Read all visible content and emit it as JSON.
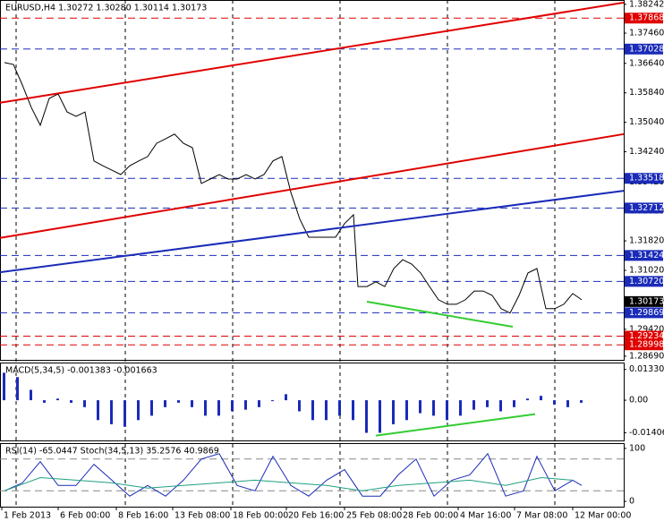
{
  "chart_data": [
    {
      "type": "line",
      "title": "EURUSD,H4  1.30272 1.30280 1.30114 1.30173",
      "color": "#000000",
      "xlim": [
        0,
        139.4
      ],
      "ylim": [
        1.2859,
        1.3836
      ],
      "x": [
        1,
        3,
        5,
        7,
        9,
        11,
        13,
        15,
        17,
        19,
        21,
        23,
        25,
        27,
        29,
        31,
        33,
        35,
        37,
        39,
        41,
        43,
        45,
        47,
        49,
        51,
        53,
        55,
        57,
        59,
        61,
        63,
        65,
        67,
        69,
        71,
        73,
        75,
        77,
        79,
        80,
        82,
        84,
        86,
        88,
        90,
        92,
        94,
        96,
        98,
        100,
        102,
        104,
        106,
        108,
        110,
        112,
        114,
        116,
        118,
        120,
        122,
        124,
        126,
        128,
        130
      ],
      "values": [
        1.3666,
        1.3661,
        1.3605,
        1.3544,
        1.3496,
        1.3569,
        1.3581,
        1.3532,
        1.352,
        1.3532,
        1.3399,
        1.3386,
        1.3374,
        1.3362,
        1.3386,
        1.3399,
        1.3411,
        1.3447,
        1.3459,
        1.3472,
        1.3447,
        1.3435,
        1.3338,
        1.335,
        1.3362,
        1.335,
        1.335,
        1.3362,
        1.335,
        1.3362,
        1.3399,
        1.3411,
        1.3314,
        1.3241,
        1.3192,
        1.3192,
        1.3192,
        1.3192,
        1.3229,
        1.3253,
        1.3058,
        1.3058,
        1.3071,
        1.3058,
        1.3107,
        1.3131,
        1.3119,
        1.3095,
        1.3058,
        1.3022,
        1.301,
        1.301,
        1.3022,
        1.3046,
        1.3046,
        1.3034,
        1.2998,
        1.2986,
        1.3034,
        1.3095,
        1.3107,
        1.2998,
        1.2998,
        1.301,
        1.3039,
        1.3022
      ],
      "yticks": [
        1.38242,
        {
          "value": 1.3746,
          "label": "1.37460"
        },
        {
          "value": 1.3664,
          "label": "1.36640"
        },
        {
          "value": 1.3584,
          "label": "1.35840"
        },
        {
          "value": 1.3504,
          "label": "1.35040"
        },
        {
          "value": 1.3424,
          "label": "1.34240"
        },
        {
          "value": 1.3342,
          "label": "1.33420"
        },
        {
          "value": 1.3262,
          "label": "1.32620"
        },
        {
          "value": 1.3182,
          "label": "1.31820"
        },
        {
          "value": 1.3102,
          "label": "1.31020"
        },
        {
          "value": 1.302,
          "label": "1.30200"
        },
        {
          "value": 1.2942,
          "label": "1.29420"
        },
        {
          "value": 1.2869,
          "label": "1.28690"
        }
      ],
      "levels": [
        {
          "value": 1.37868,
          "color": "#e00000"
        },
        {
          "value": 1.37028,
          "color": "#1a2bb8"
        },
        {
          "value": 1.33518,
          "color": "#1a2bb8"
        },
        {
          "value": 1.32712,
          "color": "#1a2bb8"
        },
        {
          "value": 1.31424,
          "color": "#1a2bb8"
        },
        {
          "value": 1.3072,
          "label": "1.30720",
          "color": "#1a2bb8"
        },
        {
          "value": 1.29869,
          "color": "#1a2bb8"
        },
        {
          "value": 1.29234,
          "color": "#e00000"
        },
        {
          "value": 1.28998,
          "color": "#e00000"
        }
      ],
      "last": 1.30173,
      "trendlines": [
        {
          "color": "#e00000",
          "x": [
            0,
            139.4
          ],
          "values": [
            1.3557,
            1.3829
          ]
        },
        {
          "color": "#e00000",
          "x": [
            0,
            139.4
          ],
          "values": [
            1.319,
            1.3472
          ]
        },
        {
          "color": "#1a2bb8",
          "x": [
            0,
            139.4
          ],
          "values": [
            1.3097,
            1.3318
          ]
        },
        {
          "color": "#33cc33",
          "x": [
            82,
            114.6
          ],
          "values": [
            1.3017,
            1.2949
          ]
        }
      ]
    },
    {
      "type": "bar",
      "title": "MACD(5,34,5) -0.001383 -0.001663",
      "color": "#1a2bb8",
      "xlim": [
        0,
        139.4
      ],
      "ylim": [
        -0.0174,
        0.0163
      ],
      "x": [
        1,
        4,
        7,
        10,
        13,
        16,
        19,
        22,
        25,
        28,
        31,
        34,
        37,
        40,
        43,
        46,
        49,
        52,
        55,
        58,
        61,
        64,
        67,
        70,
        73,
        76,
        79,
        82,
        85,
        88,
        91,
        94,
        97,
        100,
        103,
        106,
        109,
        112,
        115,
        118,
        121,
        124,
        127,
        130
      ],
      "values": [
        0.0119,
        0.01,
        0.0045,
        -0.0011,
        0.0007,
        -0.0011,
        -0.003,
        -0.0086,
        -0.0104,
        -0.0115,
        -0.0086,
        -0.0067,
        -0.003,
        -0.0011,
        -0.003,
        -0.0067,
        -0.0067,
        -0.0048,
        -0.0041,
        -0.003,
        -0.0004,
        0.0026,
        -0.0048,
        -0.0086,
        -0.0086,
        -0.0067,
        -0.0086,
        -0.0141,
        -0.0141,
        -0.0104,
        -0.0086,
        -0.0056,
        -0.0067,
        -0.0086,
        -0.0067,
        -0.0041,
        -0.003,
        -0.0048,
        -0.003,
        0.0007,
        0.0019,
        -0.0019,
        -0.003,
        -0.0011
      ],
      "yticks": [
        0.013308,
        {
          "value": 0,
          "label": "0.00"
        },
        -0.014063
      ],
      "trendlines": [
        {
          "color": "#33cc33",
          "x": [
            84,
            119.6
          ],
          "values": [
            -0.0153,
            -0.006
          ]
        }
      ]
    },
    {
      "type": "line",
      "title": "RSI(14) -65.0447  Stoch(34,5,13) 35.2576 40.9869",
      "xlim": [
        0,
        139.4
      ],
      "ylim": [
        -10,
        110
      ],
      "yticks": [
        100,
        0
      ],
      "levels": [
        {
          "value": 80,
          "color": "#888888"
        },
        {
          "value": 20,
          "color": "#888888"
        }
      ],
      "series": [
        {
          "color": "#1a2bb8",
          "x": [
            1,
            5,
            9,
            13,
            17,
            21,
            25,
            29,
            33,
            37,
            41,
            45,
            49,
            53,
            57,
            61,
            65,
            69,
            73,
            77,
            81,
            85,
            89,
            93,
            97,
            101,
            105,
            109,
            113,
            117,
            120,
            124,
            128,
            130
          ],
          "values": [
            20,
            35,
            75,
            30,
            30,
            70,
            40,
            10,
            30,
            10,
            40,
            80,
            90,
            30,
            20,
            85,
            30,
            10,
            40,
            60,
            10,
            10,
            50,
            80,
            10,
            40,
            50,
            90,
            10,
            20,
            85,
            20,
            40,
            30
          ]
        },
        {
          "color": "#20a080",
          "x": [
            1,
            9,
            17,
            25,
            33,
            41,
            49,
            57,
            65,
            73,
            81,
            89,
            97,
            105,
            113,
            121,
            128
          ],
          "values": [
            20,
            45,
            40,
            35,
            25,
            30,
            35,
            40,
            35,
            30,
            20,
            30,
            35,
            40,
            30,
            45,
            40
          ]
        }
      ],
      "xticks": [
        {
          "value": 0.4,
          "label": "1 Feb 2013"
        },
        {
          "value": 13,
          "label": "6 Feb 00:00"
        },
        {
          "value": 26,
          "label": "8 Feb 16:00"
        },
        {
          "value": 38.6,
          "label": "13 Feb 08:00"
        },
        {
          "value": 51.6,
          "label": "18 Feb 00:00"
        },
        {
          "value": 64,
          "label": "20 Feb 16:00"
        },
        {
          "value": 77,
          "label": "25 Feb 08:00"
        },
        {
          "value": 89.6,
          "label": "28 Feb 00:00"
        },
        {
          "value": 102.4,
          "label": "4 Mar 16:00"
        },
        {
          "value": 115,
          "label": "7 Mar 08:00"
        },
        {
          "value": 128,
          "label": "12 Mar 00:00"
        }
      ]
    }
  ]
}
